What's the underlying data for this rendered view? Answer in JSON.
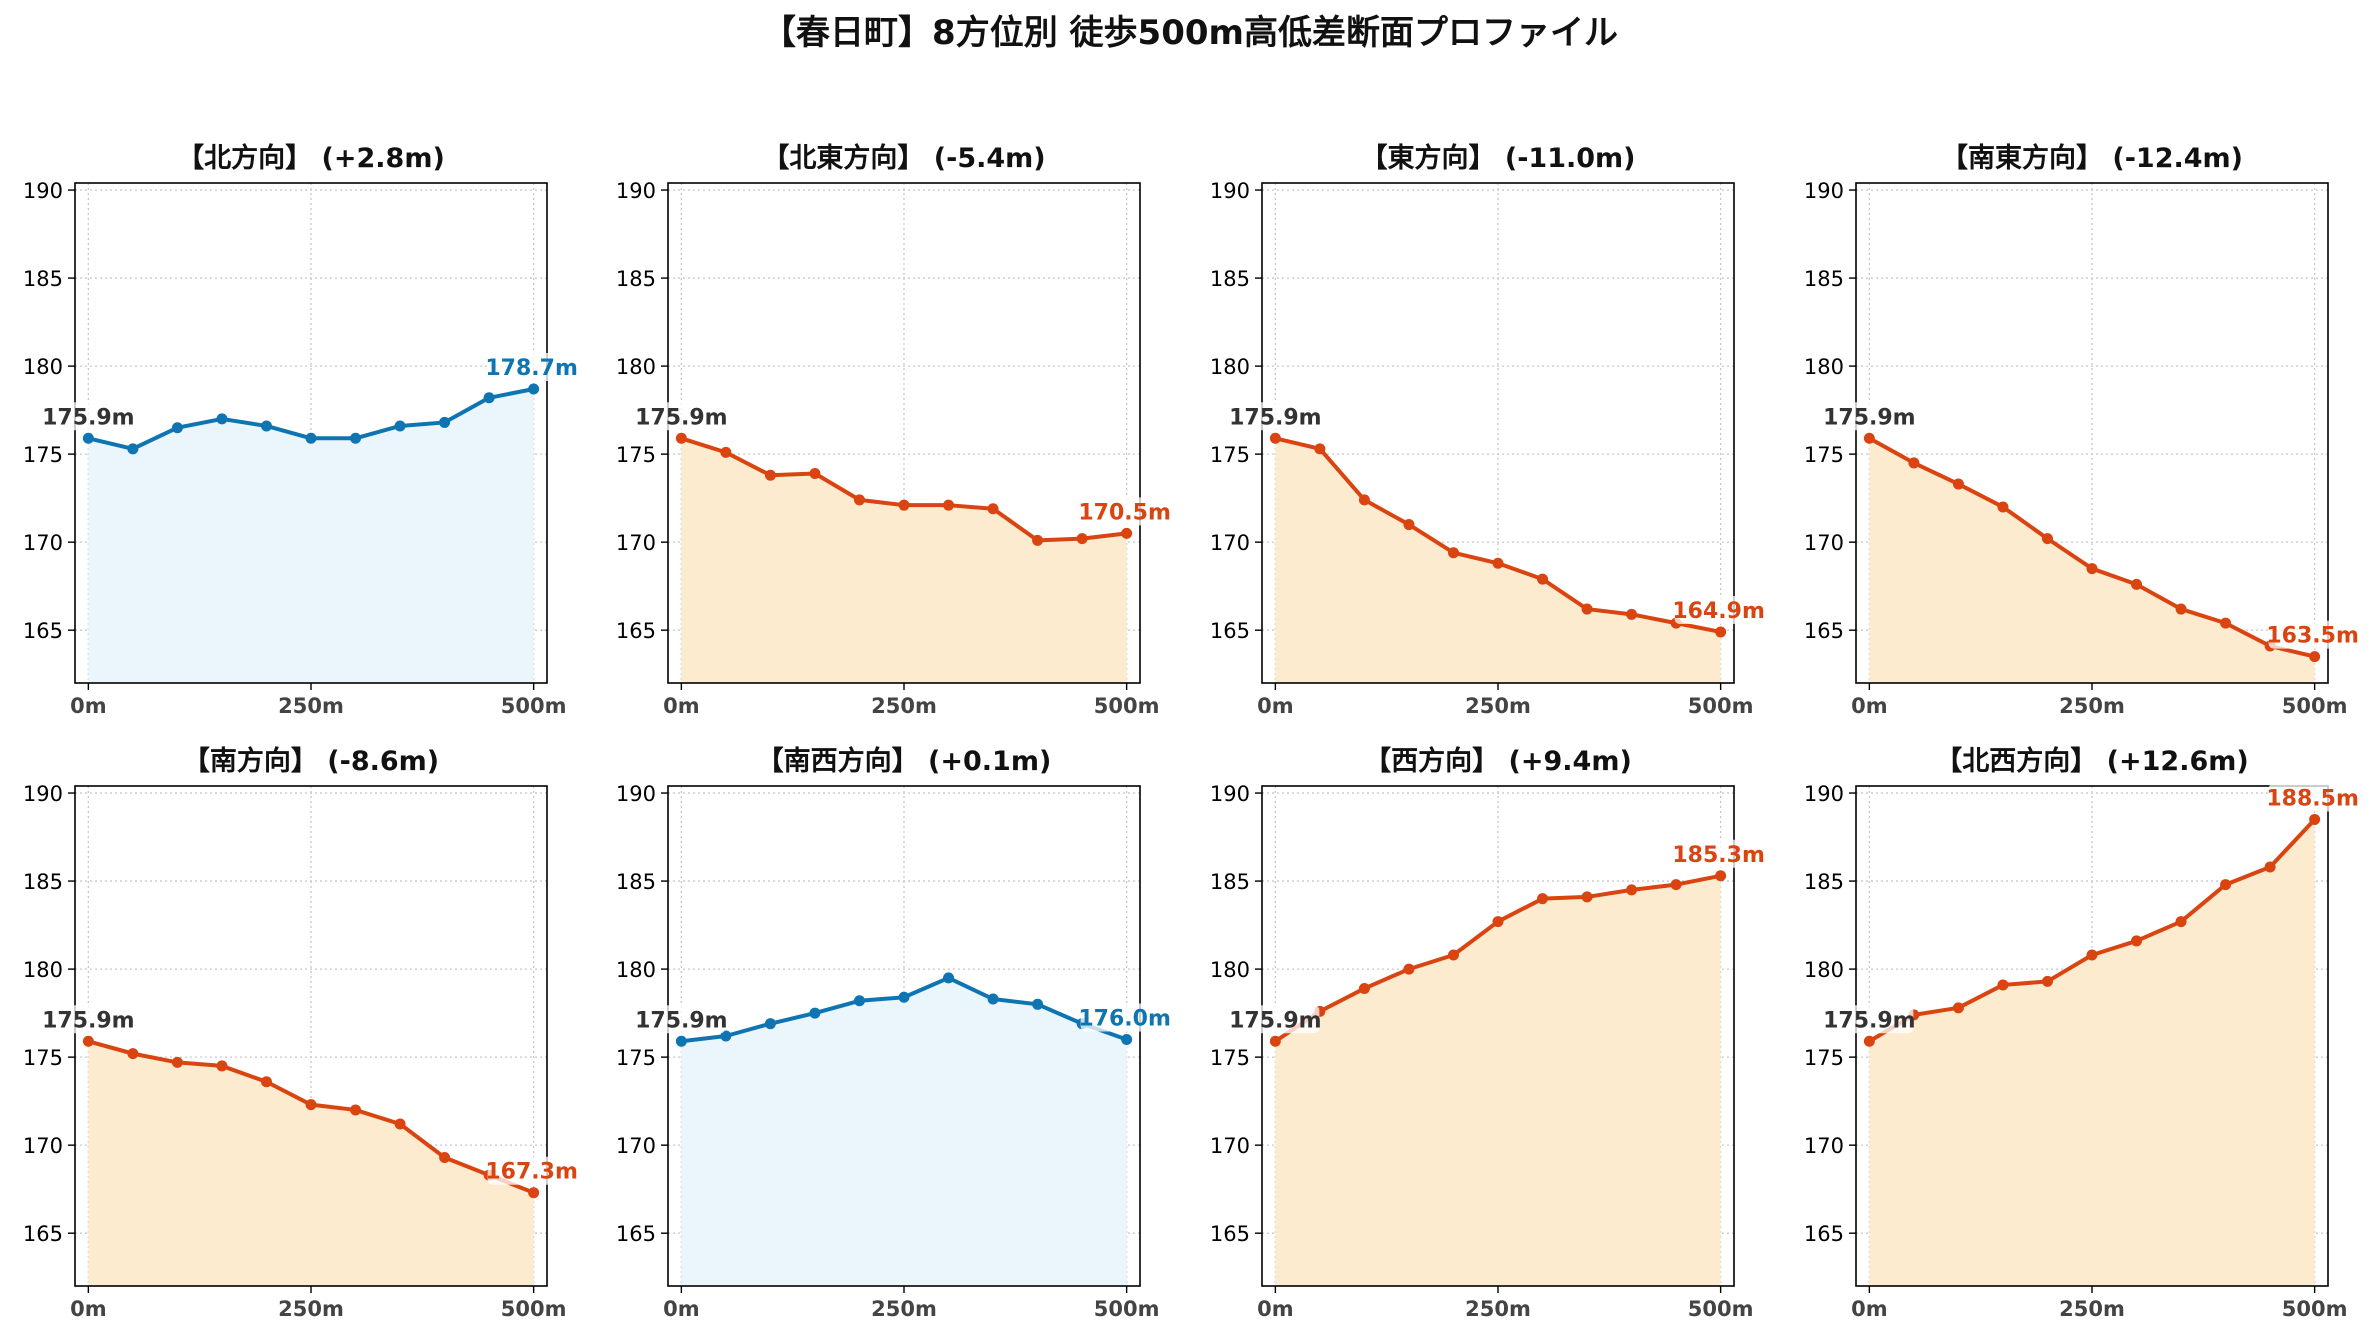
{
  "figure_title": "【春日町】8方位別 徒歩500m高低差断面プロファイル",
  "colors": {
    "up": "#d94411",
    "down": "#0e74b2",
    "up_fill": "#fdebd0",
    "down_fill": "#eaf6fc",
    "start_label": "#333333"
  },
  "chart_data": [
    {
      "type": "area",
      "title": "【北方向】 (+2.8m)",
      "x": [
        0,
        50,
        100,
        150,
        200,
        250,
        300,
        350,
        400,
        450,
        500
      ],
      "y": [
        175.9,
        175.3,
        176.5,
        177.0,
        176.6,
        175.9,
        175.9,
        176.6,
        176.8,
        178.2,
        178.7
      ],
      "start_label": "175.9m",
      "end_label": "178.7m",
      "trend": "down",
      "xticks": [
        "0m",
        "250m",
        "500m"
      ],
      "yticks": [
        165,
        170,
        175,
        180,
        185,
        190
      ],
      "xlim": [
        -15,
        515
      ],
      "ylim": [
        162,
        190.4
      ],
      "grid": true
    },
    {
      "type": "area",
      "title": "【北東方向】 (-5.4m)",
      "x": [
        0,
        50,
        100,
        150,
        200,
        250,
        300,
        350,
        400,
        450,
        500
      ],
      "y": [
        175.9,
        175.1,
        173.8,
        173.9,
        172.4,
        172.1,
        172.1,
        171.9,
        170.1,
        170.2,
        170.5
      ],
      "start_label": "175.9m",
      "end_label": "170.5m",
      "trend": "up",
      "xticks": [
        "0m",
        "250m",
        "500m"
      ],
      "yticks": [
        165,
        170,
        175,
        180,
        185,
        190
      ],
      "xlim": [
        -15,
        515
      ],
      "ylim": [
        162,
        190.4
      ],
      "grid": true
    },
    {
      "type": "area",
      "title": "【東方向】 (-11.0m)",
      "x": [
        0,
        50,
        100,
        150,
        200,
        250,
        300,
        350,
        400,
        450,
        500
      ],
      "y": [
        175.9,
        175.3,
        172.4,
        171.0,
        169.4,
        168.8,
        167.9,
        166.2,
        165.9,
        165.4,
        164.9
      ],
      "start_label": "175.9m",
      "end_label": "164.9m",
      "trend": "up",
      "xticks": [
        "0m",
        "250m",
        "500m"
      ],
      "yticks": [
        165,
        170,
        175,
        180,
        185,
        190
      ],
      "xlim": [
        -15,
        515
      ],
      "ylim": [
        162,
        190.4
      ],
      "grid": true
    },
    {
      "type": "area",
      "title": "【南東方向】 (-12.4m)",
      "x": [
        0,
        50,
        100,
        150,
        200,
        250,
        300,
        350,
        400,
        450,
        500
      ],
      "y": [
        175.9,
        174.5,
        173.3,
        172.0,
        170.2,
        168.5,
        167.6,
        166.2,
        165.4,
        164.1,
        163.5
      ],
      "start_label": "175.9m",
      "end_label": "163.5m",
      "trend": "up",
      "xticks": [
        "0m",
        "250m",
        "500m"
      ],
      "yticks": [
        165,
        170,
        175,
        180,
        185,
        190
      ],
      "xlim": [
        -15,
        515
      ],
      "ylim": [
        162,
        190.4
      ],
      "grid": true
    },
    {
      "type": "area",
      "title": "【南方向】 (-8.6m)",
      "x": [
        0,
        50,
        100,
        150,
        200,
        250,
        300,
        350,
        400,
        450,
        500
      ],
      "y": [
        175.9,
        175.2,
        174.7,
        174.5,
        173.6,
        172.3,
        172.0,
        171.2,
        169.3,
        168.3,
        167.3
      ],
      "start_label": "175.9m",
      "end_label": "167.3m",
      "trend": "up",
      "xticks": [
        "0m",
        "250m",
        "500m"
      ],
      "yticks": [
        165,
        170,
        175,
        180,
        185,
        190
      ],
      "xlim": [
        -15,
        515
      ],
      "ylim": [
        162,
        190.4
      ],
      "grid": true
    },
    {
      "type": "area",
      "title": "【南西方向】 (+0.1m)",
      "x": [
        0,
        50,
        100,
        150,
        200,
        250,
        300,
        350,
        400,
        450,
        500
      ],
      "y": [
        175.9,
        176.2,
        176.9,
        177.5,
        178.2,
        178.4,
        179.5,
        178.3,
        178.0,
        176.9,
        176.0
      ],
      "start_label": "175.9m",
      "end_label": "176.0m",
      "trend": "down",
      "xticks": [
        "0m",
        "250m",
        "500m"
      ],
      "yticks": [
        165,
        170,
        175,
        180,
        185,
        190
      ],
      "xlim": [
        -15,
        515
      ],
      "ylim": [
        162,
        190.4
      ],
      "grid": true
    },
    {
      "type": "area",
      "title": "【西方向】 (+9.4m)",
      "x": [
        0,
        50,
        100,
        150,
        200,
        250,
        300,
        350,
        400,
        450,
        500
      ],
      "y": [
        175.9,
        177.6,
        178.9,
        180.0,
        180.8,
        182.7,
        184.0,
        184.1,
        184.5,
        184.8,
        185.3
      ],
      "start_label": "175.9m",
      "end_label": "185.3m",
      "trend": "up",
      "xticks": [
        "0m",
        "250m",
        "500m"
      ],
      "yticks": [
        165,
        170,
        175,
        180,
        185,
        190
      ],
      "xlim": [
        -15,
        515
      ],
      "ylim": [
        162,
        190.4
      ],
      "grid": true
    },
    {
      "type": "area",
      "title": "【北西方向】 (+12.6m)",
      "x": [
        0,
        50,
        100,
        150,
        200,
        250,
        300,
        350,
        400,
        450,
        500
      ],
      "y": [
        175.9,
        177.4,
        177.8,
        179.1,
        179.3,
        180.8,
        181.6,
        182.7,
        184.8,
        185.8,
        188.5
      ],
      "start_label": "175.9m",
      "end_label": "188.5m",
      "trend": "up",
      "xticks": [
        "0m",
        "250m",
        "500m"
      ],
      "yticks": [
        165,
        170,
        175,
        180,
        185,
        190
      ],
      "xlim": [
        -15,
        515
      ],
      "ylim": [
        162,
        190.4
      ],
      "grid": true
    }
  ]
}
